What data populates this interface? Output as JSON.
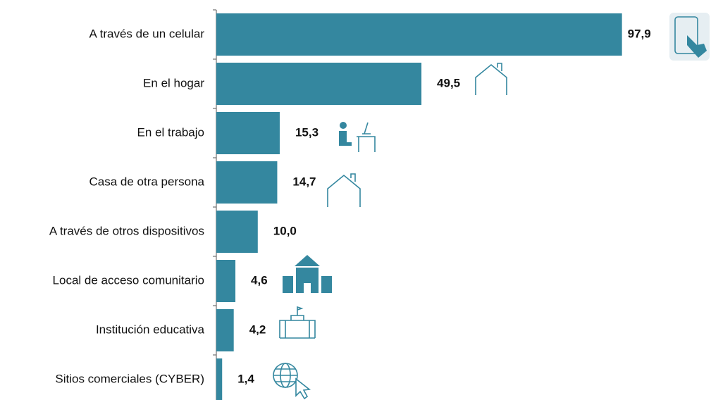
{
  "chart_data": {
    "type": "bar",
    "orientation": "horizontal",
    "color": "#34879f",
    "categories": [
      "A través de un celular",
      "En el hogar",
      "En el trabajo",
      "Casa de otra persona",
      "A través de otros dispositivos",
      "Local de acceso comunitario",
      "Institución educativa",
      "Sitios comerciales (CYBER)"
    ],
    "values": [
      97.9,
      49.5,
      15.3,
      14.7,
      10.0,
      4.6,
      4.2,
      1.4
    ],
    "value_labels": [
      "97,9",
      "49,5",
      "15,3",
      "14,7",
      "10,0",
      "4,6",
      "4,2",
      "1,4"
    ],
    "xlim": [
      0,
      100
    ]
  }
}
